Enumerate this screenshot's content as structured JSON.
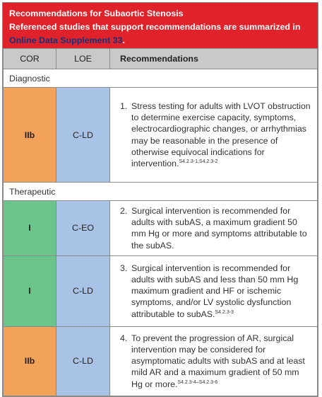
{
  "banner": {
    "title": "Recommendations for Subaortic Stenosis",
    "subtitle": "Referenced studies that support recommendations are summarized in",
    "link": "Online Data Supplement 33",
    "link_end": "."
  },
  "table": {
    "headers": {
      "cor": "COR",
      "loe": "LOE",
      "recommendations": "Recommendations"
    },
    "sections": [
      {
        "label": "Diagnostic",
        "rows": [
          {
            "cor": "IIb",
            "loe": "C-LD",
            "cor_color": "#f3a25a",
            "num": "1.",
            "text": "Stress testing for adults with LVOT obstruction to determine exercise capacity, symptoms, electrocardiographic changes, or arrhythmias may be reasonable in the presence of otherwise equivocal indications for intervention.",
            "ref": "S4.2.3-1,S4.2.3-2"
          }
        ]
      },
      {
        "label": "Therapeutic",
        "rows": [
          {
            "cor": "I",
            "loe": "C-EO",
            "cor_color": "#6bc48a",
            "num": "2.",
            "text": "Surgical intervention is recommended for adults with subAS, a maximum gradient 50 mm Hg or more and symptoms attributable to the subAS.",
            "ref": ""
          },
          {
            "cor": "I",
            "loe": "C-LD",
            "cor_color": "#6bc48a",
            "num": "3.",
            "text": "Surgical intervention is recommended for adults with subAS and less than 50 mm Hg maximum gradient and HF or ischemic symptoms, and/or LV systolic dysfunction attributable to subAS.",
            "ref": "S4.2.3-3"
          },
          {
            "cor": "IIb",
            "loe": "C-LD",
            "cor_color": "#f3a25a",
            "num": "4.",
            "text": "To prevent the progression of AR, surgical intervention may be considered for asymptomatic adults with subAS and at least mild AR and a maximum gradient of 50 mm Hg or more.",
            "ref": "S4.2.3-4–S4.2.3-6"
          }
        ]
      }
    ]
  }
}
